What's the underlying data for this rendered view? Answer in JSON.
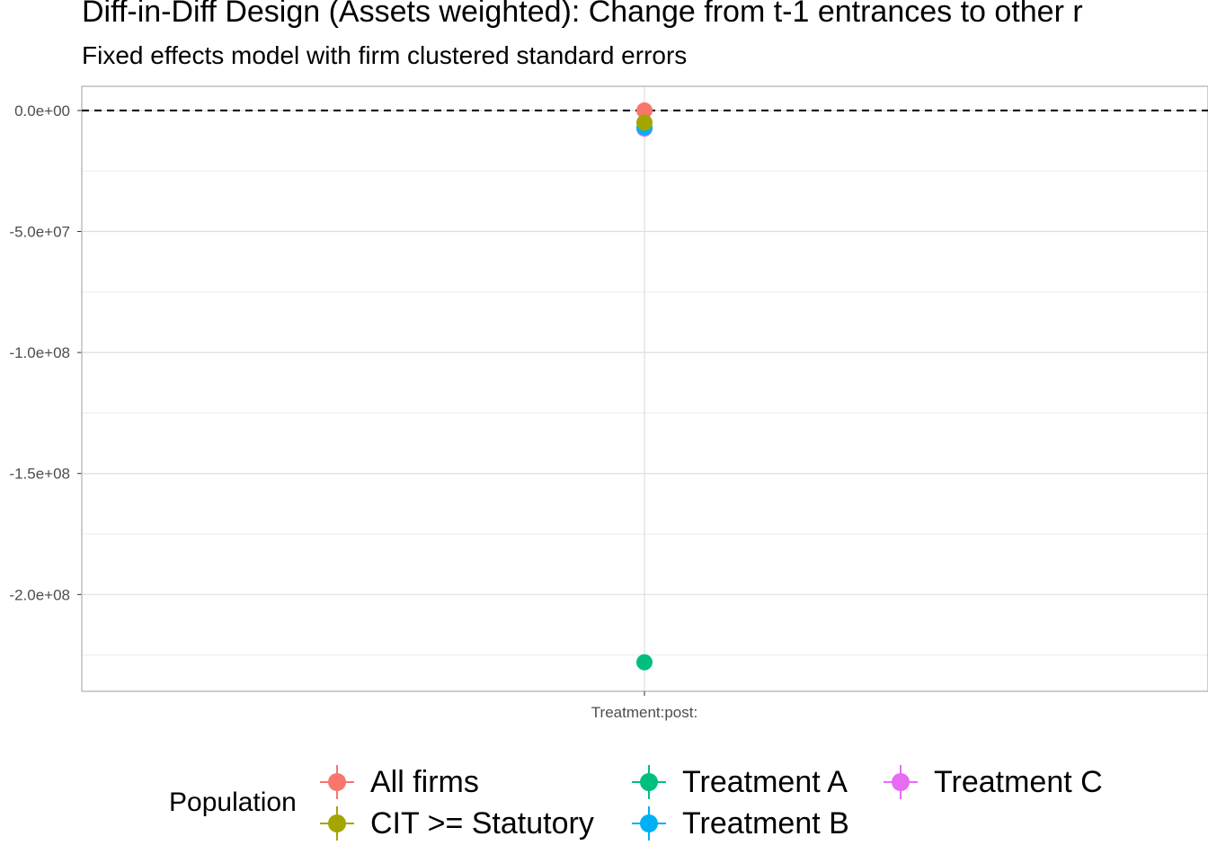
{
  "chart_data": {
    "type": "scatter",
    "title": "Diff-in-Diff Design (Assets weighted): Change from t-1 entrances to other r",
    "subtitle": "Fixed effects model with firm clustered standard errors",
    "xlabel": "",
    "ylabel": "",
    "categories": [
      "Treatment:post:"
    ],
    "ylim": [
      -240000000,
      10000000
    ],
    "y_ticks": [
      {
        "value": 0,
        "label": "0.0e+00"
      },
      {
        "value": -50000000,
        "label": "-5.0e+07"
      },
      {
        "value": -100000000,
        "label": "-1.0e+08"
      },
      {
        "value": -150000000,
        "label": "-1.5e+08"
      },
      {
        "value": -200000000,
        "label": "-2.0e+08"
      }
    ],
    "y_minor": [
      -25000000,
      -75000000,
      -125000000,
      -175000000,
      -225000000
    ],
    "reference_line": {
      "y": 0,
      "style": "dashed"
    },
    "grid": true,
    "legend": {
      "title": "Population",
      "position": "bottom"
    },
    "series": [
      {
        "name": "All firms",
        "color": "#F8766D",
        "values": [
          0
        ]
      },
      {
        "name": "CIT >= Statutory",
        "color": "#A3A500",
        "values": [
          -5000000
        ]
      },
      {
        "name": "Treatment A",
        "color": "#00BF7D",
        "values": [
          -228000000
        ]
      },
      {
        "name": "Treatment B",
        "color": "#00B0F6",
        "values": [
          -7000000
        ]
      },
      {
        "name": "Treatment C",
        "color": "#E76BF3",
        "values": [
          -7500000
        ]
      }
    ]
  }
}
